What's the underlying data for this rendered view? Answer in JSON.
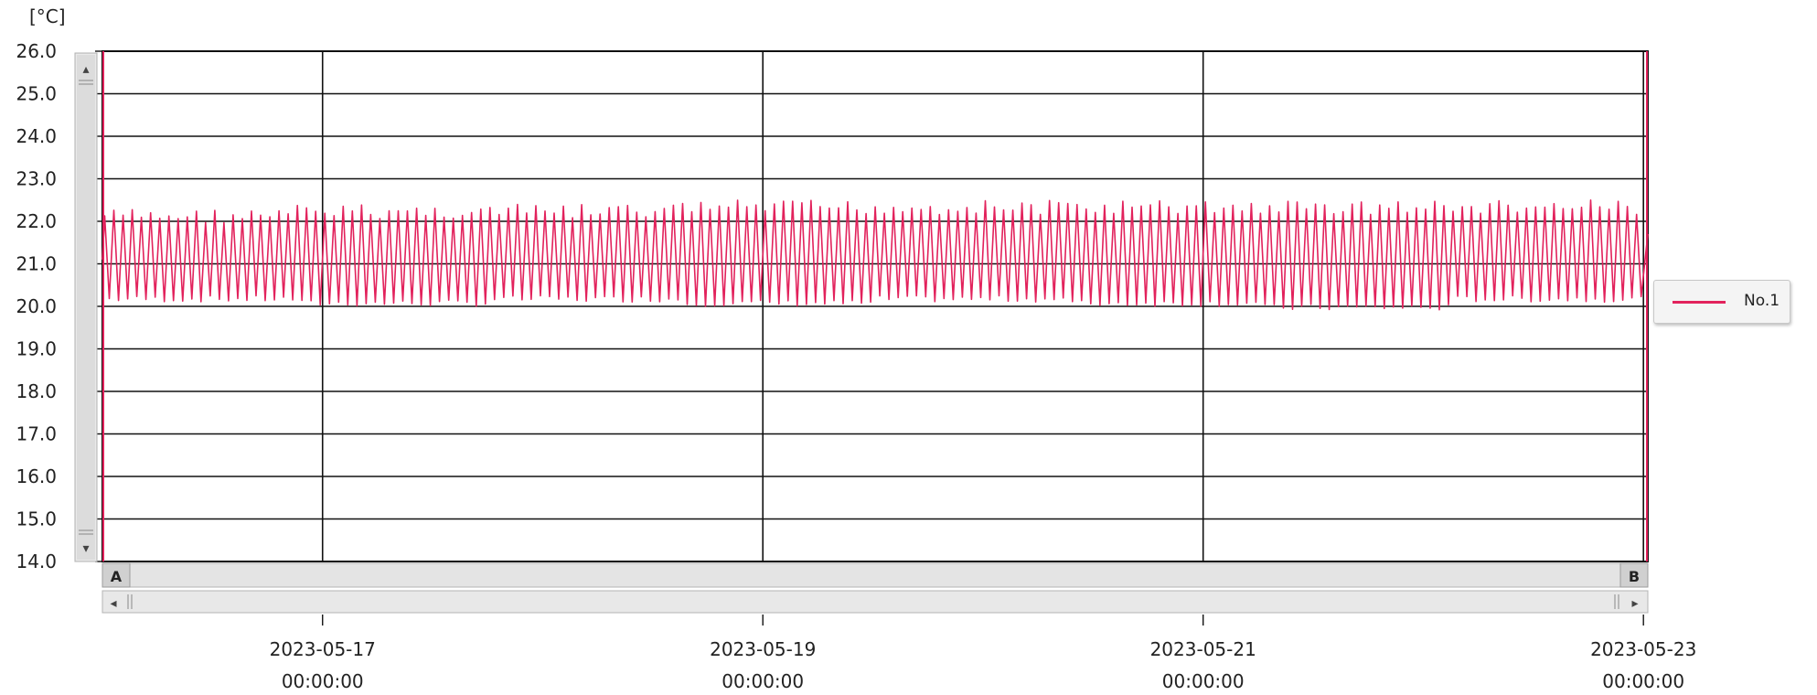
{
  "chart_data": {
    "type": "line",
    "unit_label": "[°C]",
    "y_ticks": [
      "26.0",
      "25.0",
      "24.0",
      "23.0",
      "22.0",
      "21.0",
      "20.0",
      "19.0",
      "18.0",
      "17.0",
      "16.0",
      "15.0",
      "14.0"
    ],
    "ylim": [
      14.0,
      26.0
    ],
    "x_ticks": [
      {
        "date": "2023-05-17",
        "time": "00:00:00",
        "x": 1.0
      },
      {
        "date": "2023-05-19",
        "time": "00:00:00",
        "x": 3.0
      },
      {
        "date": "2023-05-21",
        "time": "00:00:00",
        "x": 5.0
      },
      {
        "date": "2023-05-23",
        "time": "00:00:00",
        "x": 7.0
      }
    ],
    "x_unit": "days from 2023-05-16 00:00",
    "xlim": [
      0.0,
      7.02
    ],
    "grid": true,
    "cursor_labels": {
      "a": "A",
      "b": "B"
    },
    "legend_position": "right",
    "series": [
      {
        "name": "No.1",
        "color": "#e2225c",
        "cycle_hours": 1.0,
        "low_values": [
          20.1,
          20.0,
          20.1,
          20.0,
          20.1,
          20.0,
          19.9,
          20.1
        ],
        "high_values": [
          22.3,
          22.4,
          22.4,
          22.5,
          22.5,
          22.5,
          22.5,
          22.5
        ],
        "mean": 21.1
      }
    ]
  },
  "scrollbar": {
    "left_arrow": "◂",
    "right_arrow": "▸",
    "up_arrow": "▴",
    "down_arrow": "▾"
  }
}
